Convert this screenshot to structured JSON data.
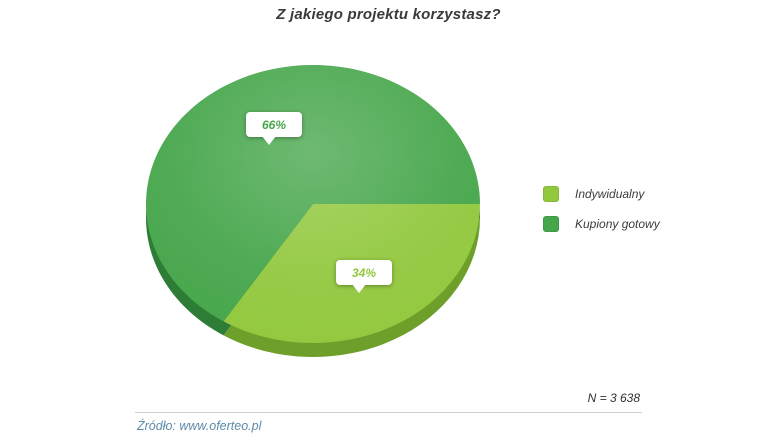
{
  "title": "Z jakiego projektu korzystasz?",
  "chart_data": {
    "type": "pie",
    "title": "Z jakiego projektu korzystasz?",
    "labels": [
      "Indywidualny",
      "Kupiony gotowy"
    ],
    "values": [
      34,
      66
    ],
    "unit": "%",
    "legend_position": "right",
    "slices": [
      {
        "label": "Indywidualny",
        "value": 34,
        "callout": "34%",
        "color": "#92c83e",
        "rim_color": "#6e9f2a"
      },
      {
        "label": "Kupiony gotowy",
        "value": 66,
        "callout": "66%",
        "color": "#46a64b",
        "rim_color": "#2e7d37"
      }
    ]
  },
  "legend": {
    "items": [
      {
        "label": "Indywidualny",
        "color": "#92c83e"
      },
      {
        "label": "Kupiony gotowy",
        "color": "#46a64b"
      }
    ]
  },
  "sample_note": "N = 3 638",
  "source": "Źródło: www.oferteo.pl"
}
